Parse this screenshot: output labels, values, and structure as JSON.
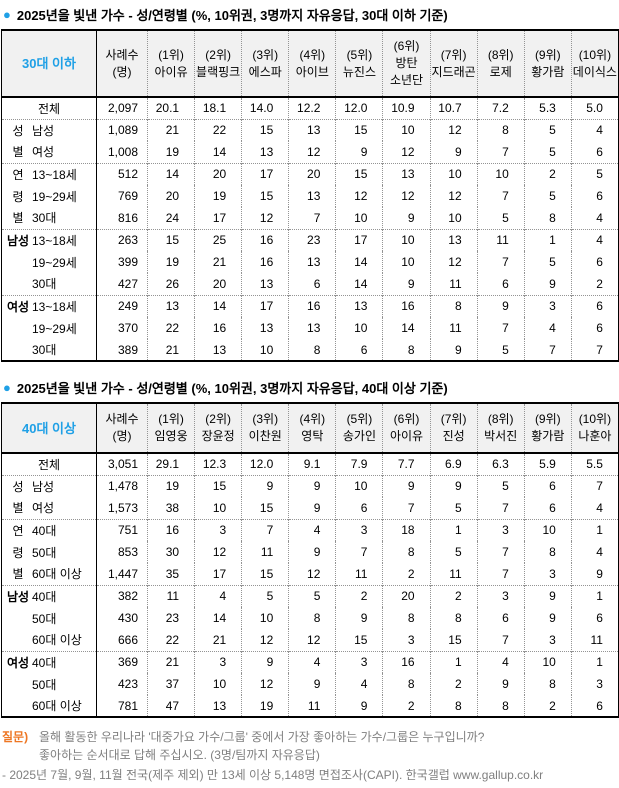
{
  "colors": {
    "accent_blue": "#1fa0e6",
    "accent_orange": "#ee7623",
    "footer_gray": "#7f7f7f"
  },
  "tables": [
    {
      "bullet": "●",
      "title": "2025년을 빛낸 가수 - 성/연령별 (%, 10위권, 3명까지 자유응답, 30대 이하 기준)",
      "row_header": "30대 이하",
      "sample_header": [
        "사례수",
        "(명)"
      ],
      "columns": [
        [
          "(1위)",
          "아이유"
        ],
        [
          "(2위)",
          "블랙핑크"
        ],
        [
          "(3위)",
          "에스파"
        ],
        [
          "(4위)",
          "아이브"
        ],
        [
          "(5위)",
          "뉴진스"
        ],
        [
          "(6위)",
          "방탄",
          "소년단"
        ],
        [
          "(7위)",
          "지드래곤"
        ],
        [
          "(8위)",
          "로제"
        ],
        [
          "(9위)",
          "황가람"
        ],
        [
          "(10위)",
          "데이식스"
        ]
      ],
      "rows": [
        {
          "cat": "",
          "label": "전체",
          "center": true,
          "n": "2,097",
          "v": [
            "20.1",
            "18.1",
            "14.0",
            "12.2",
            "12.0",
            "10.9",
            "10.7",
            "7.2",
            "5.3",
            "5.0"
          ]
        },
        {
          "cat": "성",
          "label": "남성",
          "n": "1,089",
          "sep": true,
          "v": [
            "21",
            "22",
            "15",
            "13",
            "15",
            "10",
            "12",
            "8",
            "5",
            "4"
          ]
        },
        {
          "cat": "별",
          "label": "여성",
          "n": "1,008",
          "v": [
            "19",
            "14",
            "13",
            "12",
            "9",
            "12",
            "9",
            "7",
            "5",
            "6"
          ]
        },
        {
          "cat": "연",
          "label": "13~18세",
          "n": "512",
          "sep": true,
          "v": [
            "14",
            "20",
            "17",
            "20",
            "15",
            "13",
            "10",
            "10",
            "2",
            "5"
          ]
        },
        {
          "cat": "령",
          "label": "19~29세",
          "n": "769",
          "v": [
            "20",
            "19",
            "15",
            "13",
            "12",
            "12",
            "12",
            "7",
            "5",
            "6"
          ]
        },
        {
          "cat": "별",
          "label": "30대",
          "n": "816",
          "v": [
            "24",
            "17",
            "12",
            "7",
            "10",
            "9",
            "10",
            "5",
            "8",
            "4"
          ]
        },
        {
          "cat": "남성",
          "bold": true,
          "label": "13~18세",
          "n": "263",
          "sep": true,
          "v": [
            "15",
            "25",
            "16",
            "23",
            "17",
            "10",
            "13",
            "11",
            "1",
            "4"
          ]
        },
        {
          "cat": "",
          "label": "19~29세",
          "n": "399",
          "v": [
            "19",
            "21",
            "16",
            "13",
            "14",
            "10",
            "12",
            "7",
            "5",
            "6"
          ]
        },
        {
          "cat": "",
          "label": "30대",
          "n": "427",
          "v": [
            "26",
            "20",
            "13",
            "6",
            "14",
            "9",
            "11",
            "6",
            "9",
            "2"
          ]
        },
        {
          "cat": "여성",
          "bold": true,
          "label": "13~18세",
          "n": "249",
          "sep": true,
          "v": [
            "13",
            "14",
            "17",
            "16",
            "13",
            "16",
            "8",
            "9",
            "3",
            "6"
          ]
        },
        {
          "cat": "",
          "label": "19~29세",
          "n": "370",
          "v": [
            "22",
            "16",
            "13",
            "13",
            "10",
            "14",
            "11",
            "7",
            "4",
            "6"
          ]
        },
        {
          "cat": "",
          "label": "30대",
          "n": "389",
          "v": [
            "21",
            "13",
            "10",
            "8",
            "6",
            "8",
            "9",
            "5",
            "7",
            "7"
          ]
        }
      ]
    },
    {
      "bullet": "●",
      "title": "2025년을 빛낸 가수 - 성/연령별 (%, 10위권, 3명까지 자유응답, 40대 이상 기준)",
      "row_header": "40대 이상",
      "sample_header": [
        "사례수",
        "(명)"
      ],
      "columns": [
        [
          "(1위)",
          "임영웅"
        ],
        [
          "(2위)",
          "장윤정"
        ],
        [
          "(3위)",
          "이찬원"
        ],
        [
          "(4위)",
          "영탁"
        ],
        [
          "(5위)",
          "송가인"
        ],
        [
          "(6위)",
          "아이유"
        ],
        [
          "(7위)",
          "진성"
        ],
        [
          "(8위)",
          "박서진"
        ],
        [
          "(9위)",
          "황가람"
        ],
        [
          "(10위)",
          "나훈아"
        ]
      ],
      "rows": [
        {
          "cat": "",
          "label": "전체",
          "center": true,
          "n": "3,051",
          "v": [
            "29.1",
            "12.3",
            "12.0",
            "9.1",
            "7.9",
            "7.7",
            "6.9",
            "6.3",
            "5.9",
            "5.5"
          ]
        },
        {
          "cat": "성",
          "label": "남성",
          "n": "1,478",
          "sep": true,
          "v": [
            "19",
            "15",
            "9",
            "9",
            "10",
            "9",
            "9",
            "5",
            "6",
            "7"
          ]
        },
        {
          "cat": "별",
          "label": "여성",
          "n": "1,573",
          "v": [
            "38",
            "10",
            "15",
            "9",
            "6",
            "7",
            "5",
            "7",
            "6",
            "4"
          ]
        },
        {
          "cat": "연",
          "label": "40대",
          "n": "751",
          "sep": true,
          "v": [
            "16",
            "3",
            "7",
            "4",
            "3",
            "18",
            "1",
            "3",
            "10",
            "1"
          ]
        },
        {
          "cat": "령",
          "label": "50대",
          "n": "853",
          "v": [
            "30",
            "12",
            "11",
            "9",
            "7",
            "8",
            "5",
            "7",
            "8",
            "4"
          ]
        },
        {
          "cat": "별",
          "label": "60대 이상",
          "n": "1,447",
          "v": [
            "35",
            "17",
            "15",
            "12",
            "11",
            "2",
            "11",
            "7",
            "3",
            "9"
          ]
        },
        {
          "cat": "남성",
          "bold": true,
          "label": "40대",
          "n": "382",
          "sep": true,
          "v": [
            "11",
            "4",
            "5",
            "5",
            "2",
            "20",
            "2",
            "3",
            "9",
            "1"
          ]
        },
        {
          "cat": "",
          "label": "50대",
          "n": "430",
          "v": [
            "23",
            "14",
            "10",
            "8",
            "9",
            "8",
            "8",
            "6",
            "9",
            "6"
          ]
        },
        {
          "cat": "",
          "label": "60대 이상",
          "n": "666",
          "v": [
            "22",
            "21",
            "12",
            "12",
            "15",
            "3",
            "15",
            "7",
            "3",
            "11"
          ]
        },
        {
          "cat": "여성",
          "bold": true,
          "label": "40대",
          "n": "369",
          "sep": true,
          "v": [
            "21",
            "3",
            "9",
            "4",
            "3",
            "16",
            "1",
            "4",
            "10",
            "1"
          ]
        },
        {
          "cat": "",
          "label": "50대",
          "n": "423",
          "v": [
            "37",
            "10",
            "12",
            "9",
            "4",
            "8",
            "2",
            "9",
            "8",
            "3"
          ]
        },
        {
          "cat": "",
          "label": "60대 이상",
          "n": "781",
          "v": [
            "47",
            "13",
            "19",
            "11",
            "9",
            "2",
            "8",
            "8",
            "2",
            "6"
          ]
        }
      ]
    }
  ],
  "footer": {
    "q_label": "질문)",
    "q_line1": "올해 활동한 우리나라 '대중가요 가수/그룹' 중에서 가장 좋아하는 가수/그룹은 누구입니까?",
    "q_line2": "좋아하는 순서대로 답해 주십시오. (3명/팀까지 자유응답)",
    "source": "- 2025년 7월, 9월, 11월 전국(제주 제외) 만 13세 이상 5,148명 면접조사(CAPI). 한국갤럽 www.gallup.co.kr"
  }
}
